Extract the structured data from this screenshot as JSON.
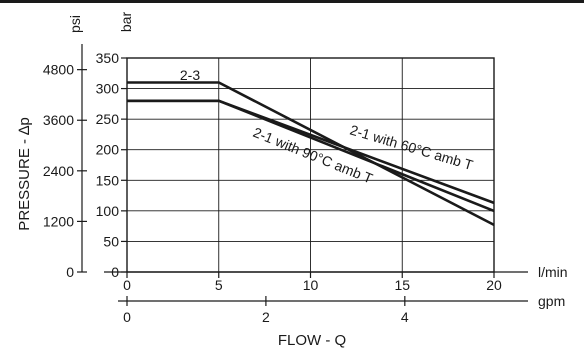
{
  "chart_data": {
    "type": "line",
    "xlabel": "FLOW - Q",
    "ylabel": "PRESSURE - ∆p",
    "x_unit": "l/min",
    "x2_unit": "gpm",
    "y_unit": "bar",
    "y2_unit": "psi",
    "xlim": [
      0,
      20
    ],
    "ylim": [
      0,
      350
    ],
    "x_ticks": [
      0,
      5,
      10,
      15,
      20
    ],
    "y_ticks": [
      0,
      50,
      100,
      150,
      200,
      250,
      300,
      350
    ],
    "x2_ticks": [
      0,
      2,
      4
    ],
    "y2_ticks": [
      0,
      1200,
      2400,
      3600,
      4800
    ],
    "grid": true,
    "series": [
      {
        "name": "2-3",
        "x": [
          0,
          5,
          20
        ],
        "y": [
          310,
          310,
          77
        ]
      },
      {
        "name": "2-1 with 60°C amb T",
        "x": [
          0,
          5,
          20
        ],
        "y": [
          280,
          280,
          113
        ]
      },
      {
        "name": "2-1 with 90°C amb T",
        "x": [
          0,
          5,
          20
        ],
        "y": [
          280,
          280,
          100
        ]
      }
    ],
    "colors": {
      "line": "#1a1a1a",
      "axis": "#1a1a1a",
      "grid": "#1a1a1a"
    }
  }
}
